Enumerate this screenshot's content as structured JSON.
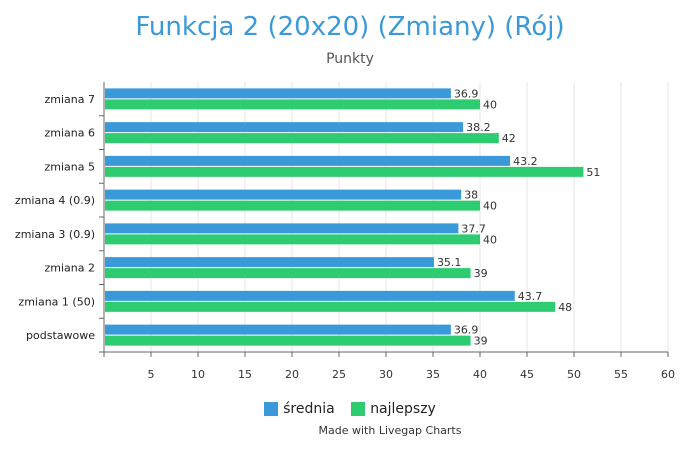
{
  "chart_data": {
    "type": "bar",
    "orientation": "horizontal",
    "title": "Funkcja 2 (20x20) (Zmiany) (Rój)",
    "subtitle": "Punkty",
    "categories": [
      "zmiana 7",
      "zmiana 6",
      "zmiana 5",
      "zmiana 4 (0.9)",
      "zmiana 3 (0.9)",
      "zmiana 2",
      "zmiana 1 (50)",
      "podstawowe"
    ],
    "series": [
      {
        "name": "średnia",
        "color": "#3a9ad9",
        "values": [
          36.9,
          38.2,
          43.2,
          38,
          37.7,
          35.1,
          43.7,
          36.9
        ],
        "labels": [
          "36.9",
          "38.2",
          "43.2",
          "38",
          "37.7",
          "35.1",
          "43.7",
          "36.9"
        ]
      },
      {
        "name": "najlepszy",
        "color": "#2ecc71",
        "values": [
          40,
          42,
          51,
          40,
          40,
          39,
          48,
          39
        ],
        "labels": [
          "40",
          "42",
          "51",
          "40",
          "40",
          "39",
          "48",
          "39"
        ]
      }
    ],
    "xlim": [
      0,
      60
    ],
    "ticks": [
      5,
      10,
      15,
      20,
      25,
      30,
      35,
      40,
      45,
      50,
      55,
      60
    ],
    "tick_labels": [
      "5",
      "10",
      "15",
      "20",
      "25",
      "30",
      "35",
      "40",
      "45",
      "50",
      "55",
      "60"
    ],
    "grid": true,
    "legend_position": "bottom"
  },
  "legend": {
    "series0": "średnia",
    "series1": "najlepszy"
  },
  "credit": "Made with Livegap Charts"
}
